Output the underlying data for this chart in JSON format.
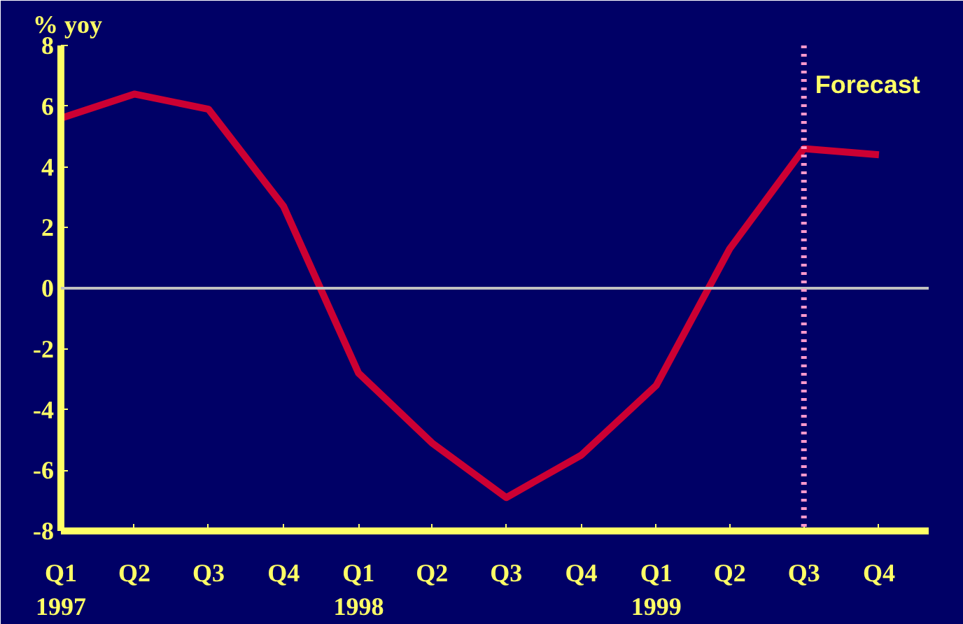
{
  "chart_data": {
    "type": "line",
    "ylabel": "% yoy",
    "x": [
      "1997-01",
      "1997-04",
      "1997-07",
      "1997-10",
      "1998-01",
      "1998-04",
      "1998-07",
      "1998-10",
      "1999-01",
      "1999-04",
      "1999-07",
      "1999-10"
    ],
    "xlim": [
      "1997-01",
      "1999-12"
    ],
    "xticks": [
      {
        "value": "1997-01",
        "label": "Q1\n1997"
      },
      {
        "value": "1997-04",
        "label": "Q2"
      },
      {
        "value": "1997-07",
        "label": "Q3"
      },
      {
        "value": "1997-10",
        "label": "Q4"
      },
      {
        "value": "1998-01",
        "label": "Q1\n1998"
      },
      {
        "value": "1998-04",
        "label": "Q2"
      },
      {
        "value": "1998-07",
        "label": "Q3"
      },
      {
        "value": "1998-10",
        "label": "Q4"
      },
      {
        "value": "1999-01",
        "label": "Q1\n1999"
      },
      {
        "value": "1999-04",
        "label": "Q2"
      },
      {
        "value": "1999-07",
        "label": "Q3"
      },
      {
        "value": "1999-10",
        "label": "Q4"
      }
    ],
    "series": [
      {
        "color": "#cc0033",
        "values": [
          5.6,
          6.4,
          5.9,
          2.7,
          -2.8,
          -5.1,
          -6.9,
          -5.5,
          -3.2,
          1.3,
          4.6,
          4.4
        ]
      }
    ],
    "ylim": [
      -8,
      8
    ],
    "yticks": [
      -8,
      -6,
      -4,
      -2,
      0,
      2,
      4,
      6,
      8
    ],
    "ref_lines": [
      {
        "axis": "y",
        "value": 0,
        "color": "#c0c0c0",
        "line_style": "solid"
      },
      {
        "axis": "x",
        "value": "1999-07",
        "label": "Forecast",
        "color": "#ff99cc",
        "line_style": "dotted"
      }
    ],
    "marker": "none",
    "line_style": "solid"
  }
}
